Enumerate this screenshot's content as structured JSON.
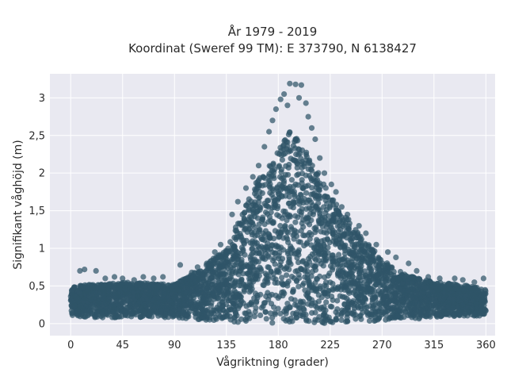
{
  "chart_data": {
    "type": "scatter",
    "title_lines": [
      "År 1979 - 2019",
      "Koordinat (Sweref 99 TM): E 373790, N 6138427"
    ],
    "xlabel": "Vågriktning (grader)",
    "ylabel": "Signifikant våghöjd (m)",
    "xlim": [
      -18,
      368
    ],
    "ylim": [
      -0.16,
      3.32
    ],
    "xticks": [
      0,
      45,
      90,
      135,
      180,
      225,
      270,
      315,
      360
    ],
    "xtick_labels": [
      "0",
      "45",
      "90",
      "135",
      "180",
      "225",
      "270",
      "315",
      "360"
    ],
    "yticks": [
      0,
      0.5,
      1,
      1.5,
      2,
      2.5,
      3
    ],
    "ytick_labels": [
      "0",
      "0,5",
      "1",
      "1,5",
      "2",
      "2,5",
      "3"
    ],
    "grid": true,
    "colors": {
      "point": "#2f5468",
      "plot_bg": "#e9e9f1",
      "grid": "#ffffff"
    },
    "envelope": {
      "x": [
        0,
        20,
        45,
        90,
        110,
        135,
        155,
        165,
        180,
        190,
        200,
        215,
        225,
        250,
        270,
        290,
        315,
        340,
        360
      ],
      "upper": [
        0.5,
        0.52,
        0.55,
        0.52,
        0.7,
        1.0,
        1.7,
        2.0,
        2.3,
        2.55,
        2.4,
        2.0,
        1.7,
        1.2,
        0.85,
        0.65,
        0.55,
        0.52,
        0.45
      ],
      "lower": [
        0.1,
        0.08,
        0.08,
        0.08,
        0.05,
        0.02,
        0.0,
        0.0,
        0.0,
        0.0,
        0.0,
        0.0,
        0.0,
        0.02,
        0.04,
        0.05,
        0.08,
        0.1,
        0.1
      ]
    },
    "outliers": [
      [
        190,
        3.19
      ],
      [
        195,
        3.18
      ],
      [
        200,
        3.17
      ],
      [
        185,
        3.05
      ],
      [
        198,
        3.0
      ],
      [
        182,
        2.98
      ],
      [
        204,
        2.93
      ],
      [
        188,
        2.9
      ],
      [
        178,
        2.85
      ],
      [
        206,
        2.75
      ],
      [
        175,
        2.7
      ],
      [
        209,
        2.6
      ],
      [
        172,
        2.55
      ],
      [
        212,
        2.45
      ],
      [
        168,
        2.35
      ],
      [
        216,
        2.2
      ],
      [
        163,
        2.1
      ],
      [
        220,
        2.0
      ],
      [
        158,
        1.95
      ],
      [
        226,
        1.85
      ],
      [
        152,
        1.8
      ],
      [
        230,
        1.75
      ],
      [
        235,
        1.55
      ],
      [
        240,
        1.45
      ],
      [
        250,
        1.3
      ],
      [
        256,
        1.2
      ],
      [
        265,
        1.05
      ],
      [
        275,
        0.95
      ],
      [
        282,
        0.88
      ],
      [
        293,
        0.8
      ],
      [
        300,
        0.7
      ],
      [
        310,
        0.62
      ],
      [
        320,
        0.6
      ],
      [
        333,
        0.6
      ],
      [
        340,
        0.58
      ],
      [
        350,
        0.55
      ],
      [
        358,
        0.6
      ],
      [
        95,
        0.78
      ],
      [
        110,
        0.75
      ],
      [
        118,
        0.8
      ],
      [
        125,
        0.95
      ],
      [
        130,
        1.05
      ],
      [
        12,
        0.72
      ],
      [
        22,
        0.7
      ],
      [
        8,
        0.7
      ],
      [
        30,
        0.6
      ],
      [
        38,
        0.62
      ],
      [
        45,
        0.6
      ],
      [
        55,
        0.58
      ],
      [
        63,
        0.62
      ],
      [
        72,
        0.6
      ],
      [
        80,
        0.62
      ],
      [
        105,
        0.68
      ],
      [
        140,
        1.45
      ],
      [
        145,
        1.62
      ]
    ]
  }
}
